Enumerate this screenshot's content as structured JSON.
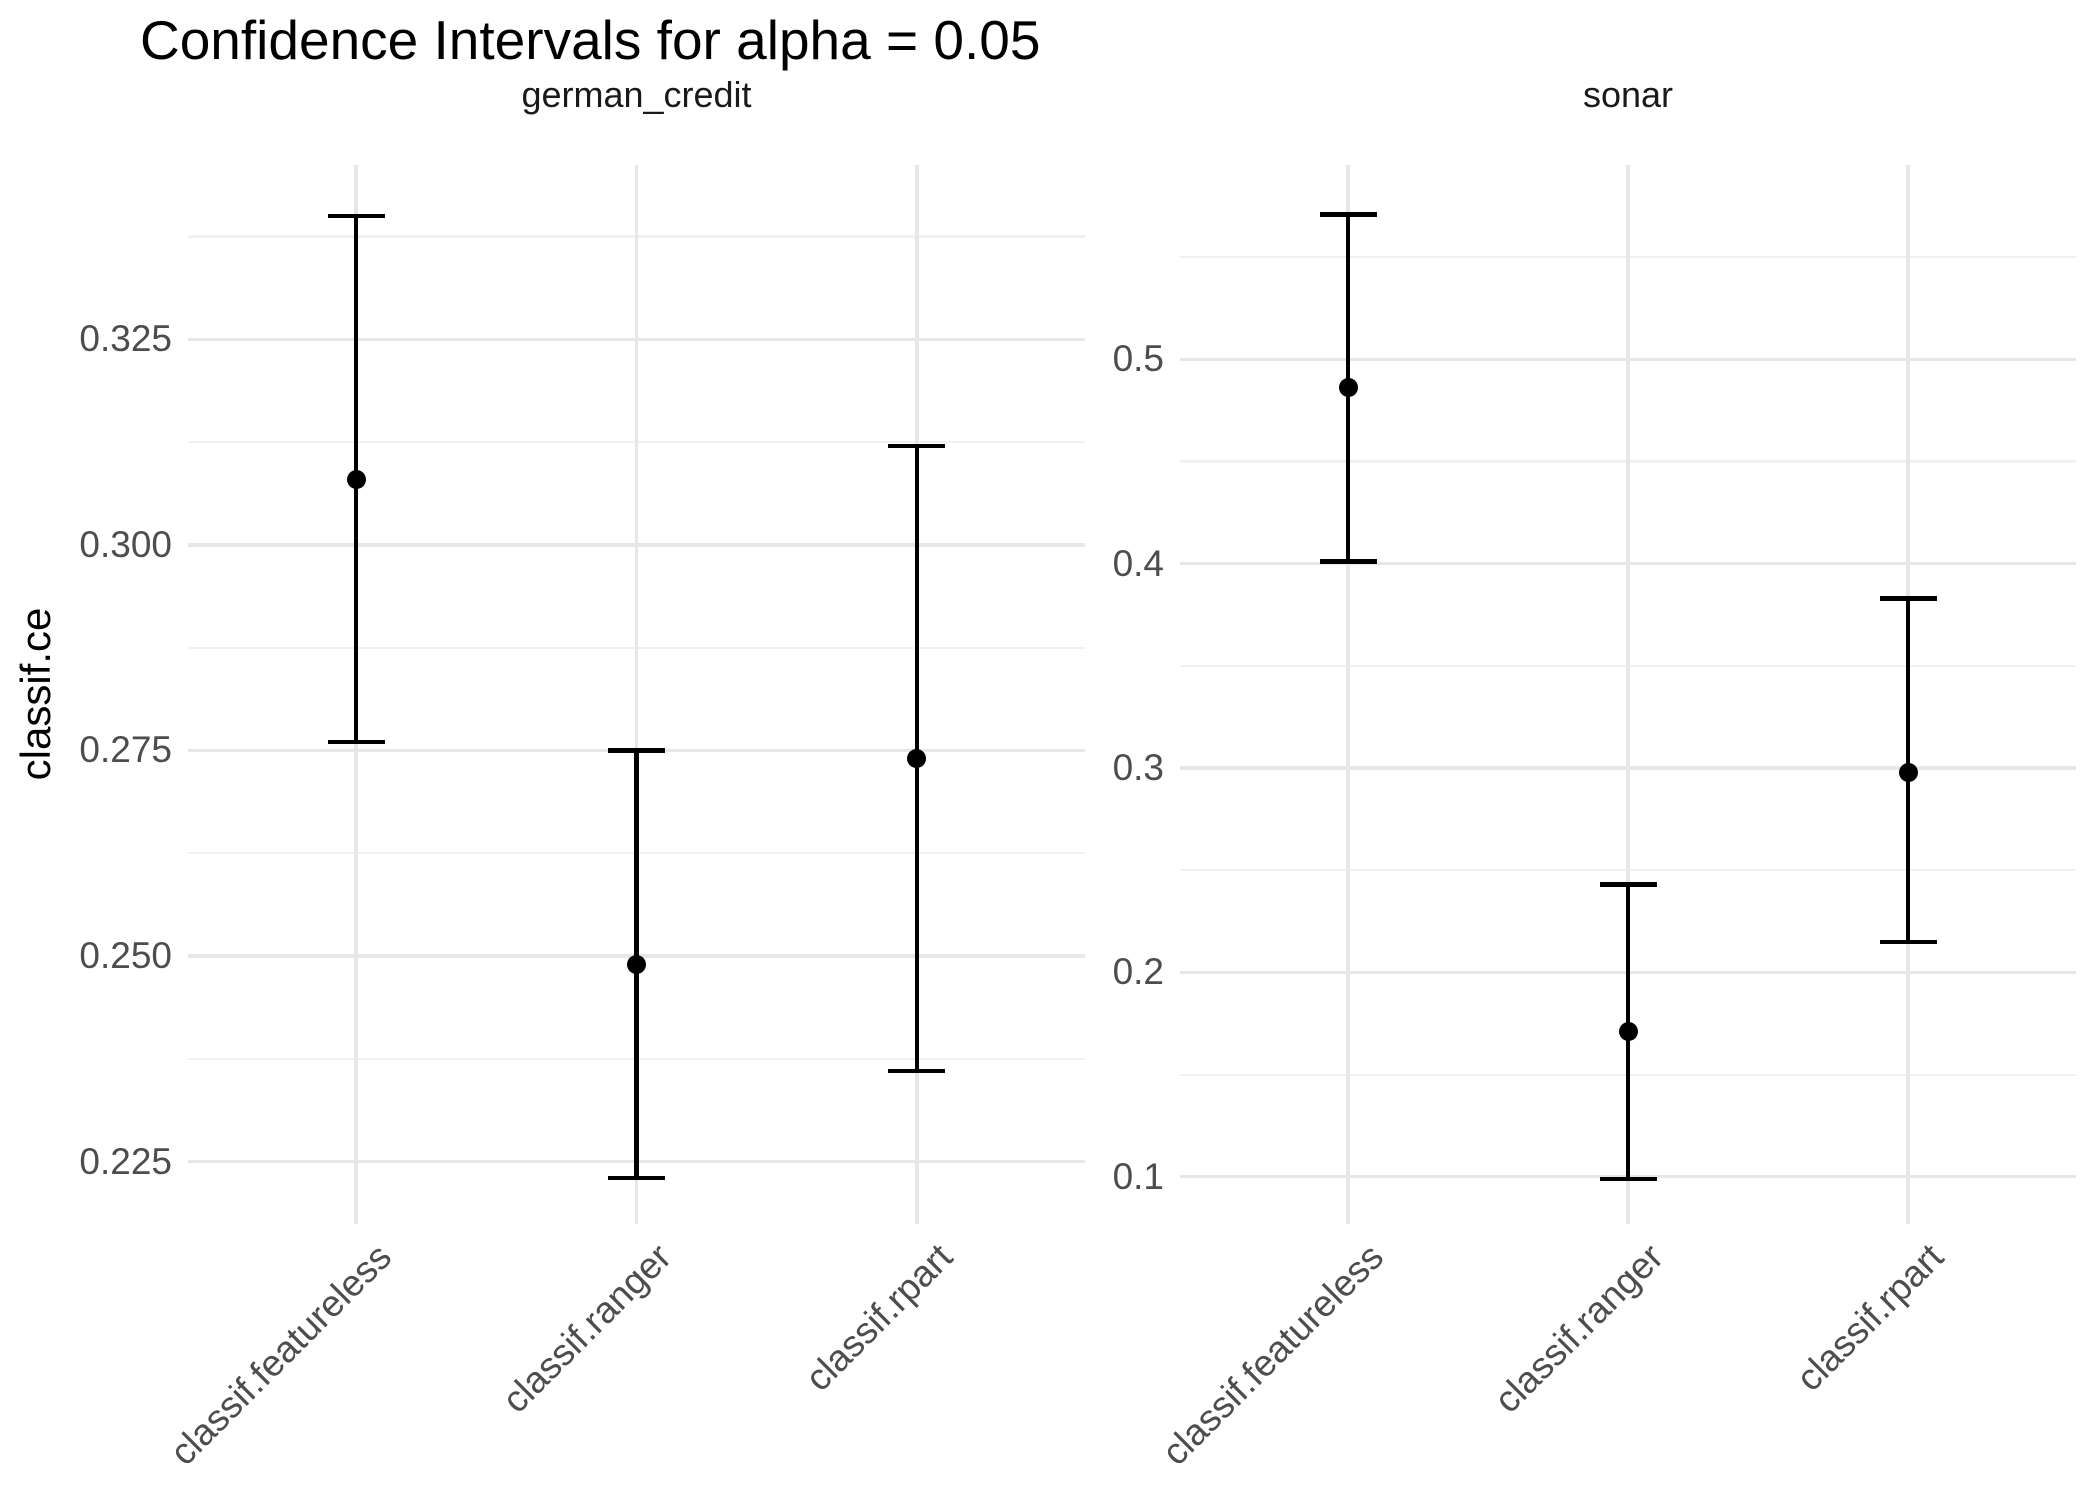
{
  "title": "Confidence Intervals for alpha = 0.05",
  "y_axis_title": "classif.ce",
  "chart_data": {
    "type": "errorbar",
    "title": "Confidence Intervals for alpha = 0.05",
    "ylabel": "classif.ce",
    "alpha": "0.05",
    "grid": true,
    "facets": [
      {
        "label": "german_credit",
        "categories": [
          "classif.featureless",
          "classif.ranger",
          "classif.rpart"
        ],
        "series": [
          {
            "learner": "classif.featureless",
            "estimate": 0.308,
            "lower": 0.276,
            "upper": 0.34
          },
          {
            "learner": "classif.ranger",
            "estimate": 0.249,
            "lower": 0.223,
            "upper": 0.275
          },
          {
            "learner": "classif.rpart",
            "estimate": 0.274,
            "lower": 0.236,
            "upper": 0.312
          }
        ],
        "y_tick_labels": [
          "0.225",
          "0.250",
          "0.275",
          "0.300",
          "0.325"
        ],
        "y_major_ticks": [
          0.225,
          0.25,
          0.275,
          0.3,
          0.325
        ],
        "y_minor_ticks": [
          0.2375,
          0.2625,
          0.2875,
          0.3125,
          0.3375
        ],
        "ylim": [
          0.2174,
          0.3462
        ]
      },
      {
        "label": "sonar",
        "categories": [
          "classif.featureless",
          "classif.ranger",
          "classif.rpart"
        ],
        "series": [
          {
            "learner": "classif.featureless",
            "estimate": 0.486,
            "lower": 0.401,
            "upper": 0.571
          },
          {
            "learner": "classif.ranger",
            "estimate": 0.171,
            "lower": 0.099,
            "upper": 0.243
          },
          {
            "learner": "classif.rpart",
            "estimate": 0.298,
            "lower": 0.215,
            "upper": 0.383
          }
        ],
        "y_tick_labels": [
          "0.1",
          "0.2",
          "0.3",
          "0.4",
          "0.5"
        ],
        "y_major_ticks": [
          0.1,
          0.2,
          0.3,
          0.4,
          0.5
        ],
        "y_minor_ticks": [
          0.15,
          0.25,
          0.35,
          0.45,
          0.55
        ],
        "ylim": [
          0.0769,
          0.5951
        ]
      }
    ]
  },
  "colors": {
    "point": "#000000",
    "errorbar": "#000000",
    "grid_major": "#e7e7e7",
    "grid_minor": "#f1f1f1",
    "axis_text": "#4d4d4d",
    "strip_text": "#1a1a1a",
    "title_text": "#000000",
    "background": "#ffffff"
  }
}
